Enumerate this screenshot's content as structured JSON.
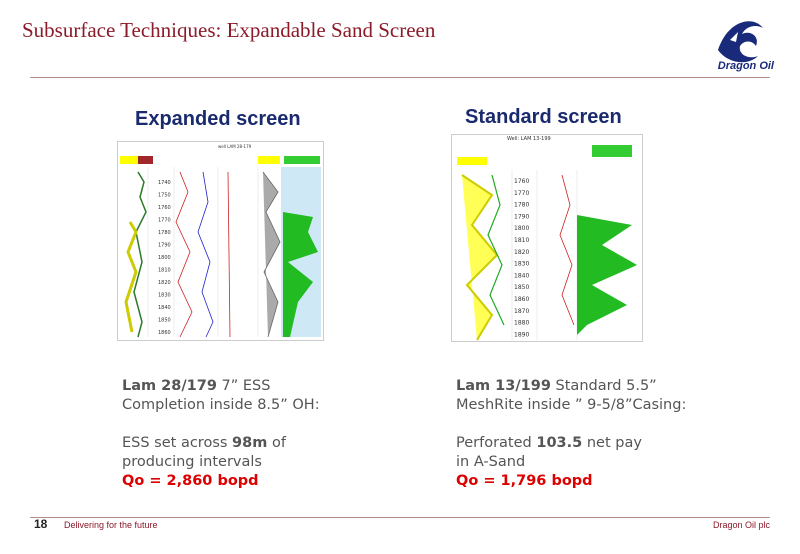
{
  "header": {
    "title": "Subsurface Techniques: Expandable Sand Screen",
    "logo_text": "Dragon Oil"
  },
  "left": {
    "heading": "Expanded screen",
    "log_title": "well LAM 28-179",
    "depths": [
      "1740",
      "1750",
      "1760",
      "1770",
      "1780",
      "1790",
      "1800",
      "1810",
      "1820",
      "1830",
      "1840",
      "1850",
      "1860"
    ],
    "line1_bold": "Lam 28/179",
    "line1_rest": " 7” ESS",
    "line2": "Completion inside 8.5” OH:",
    "line3_a": "ESS set across ",
    "line3_bold": "98m",
    "line3_b": " of",
    "line4": "producing intervals",
    "rate": "Qo = 2,860 bopd"
  },
  "right": {
    "heading": "Standard screen",
    "log_title": "Well: LAM 13-199",
    "depths": [
      "1760",
      "1770",
      "1780",
      "1790",
      "1800",
      "1810",
      "1820",
      "1830",
      "1840",
      "1850",
      "1860",
      "1870",
      "1880",
      "1890"
    ],
    "line1_bold": "Lam 13/199",
    "line1_rest": " Standard 5.5”",
    "line2": "MeshRite inside ” 9-5/8”Casing:",
    "line3_a": "Perforated ",
    "line3_bold": "103.5",
    "line3_b": " net pay",
    "line4": "in A-Sand",
    "rate": "Qo = 1,796 bopd"
  },
  "footer": {
    "page": "18",
    "tagline": "Delivering for the future",
    "company": "Dragon Oil plc"
  }
}
